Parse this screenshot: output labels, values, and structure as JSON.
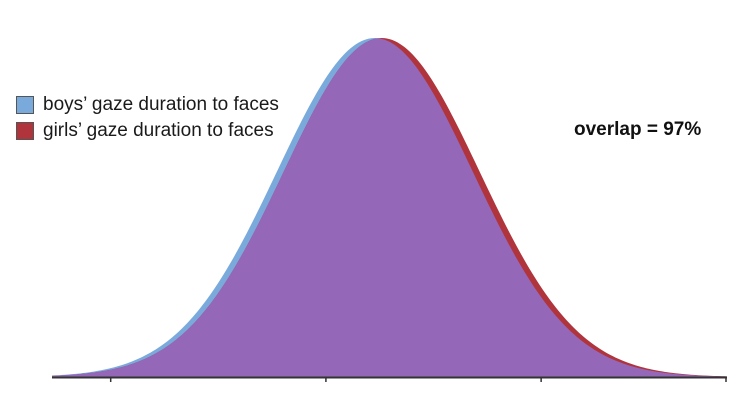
{
  "chart_data": {
    "type": "area",
    "title": "",
    "xlabel": "",
    "ylabel": "",
    "xlim": [
      -3.3,
      3.6
    ],
    "ylim": [
      0,
      1
    ],
    "x_ticks": [
      -2.7,
      -0.5,
      1.7,
      3.6
    ],
    "grid": false,
    "legend_position": "left",
    "series": [
      {
        "name": "boys’ gaze duration to faces",
        "distribution": "normal",
        "mean": 0,
        "sd": 1,
        "color": "#7aaadc"
      },
      {
        "name": "girls’ gaze duration to faces",
        "distribution": "normal",
        "mean": 0.07,
        "sd": 1,
        "color": "#b0343c"
      }
    ],
    "overlap_color": "#9467b8",
    "annotation": "overlap = 97%"
  }
}
